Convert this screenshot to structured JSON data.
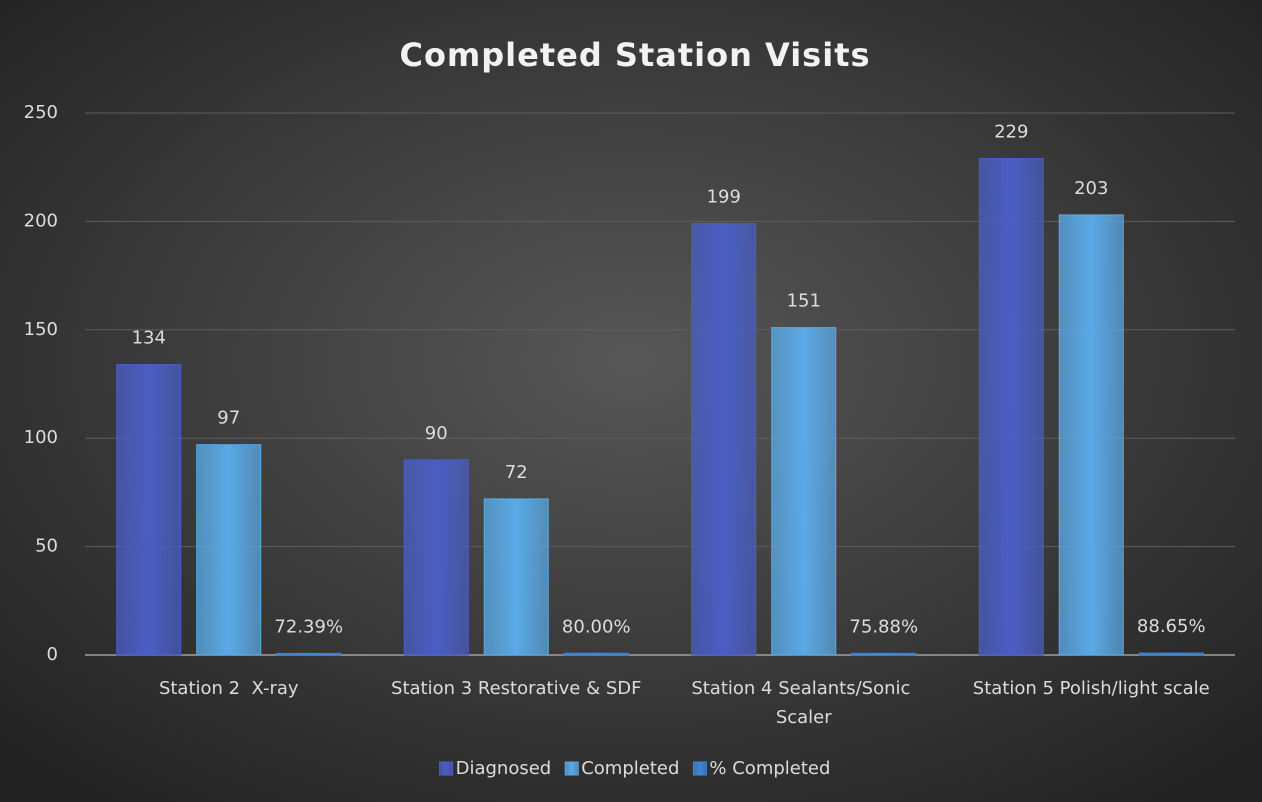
{
  "chart_data": {
    "type": "bar",
    "title": "Completed Station Visits",
    "categories": [
      "Station 2  X-ray",
      "Station 3 Restorative & SDF",
      "Station 4 Sealants/Sonic Scaler",
      "Station 5 Polish/light scale"
    ],
    "series": [
      {
        "name": "Diagnosed",
        "color": "#4a5ec4",
        "values": [
          134,
          90,
          199,
          229
        ]
      },
      {
        "name": "Completed",
        "color": "#5aaae6",
        "values": [
          97,
          72,
          151,
          203
        ]
      },
      {
        "name": "% Completed",
        "color": "#3f86d8",
        "values": [
          0.7239,
          0.8,
          0.7588,
          0.8865
        ],
        "value_labels": [
          "72.39%",
          "80.00%",
          "75.88%",
          "88.65%"
        ]
      }
    ],
    "ylim": [
      0,
      250
    ],
    "yticks": [
      0,
      50,
      100,
      150,
      200,
      250
    ],
    "grid": true,
    "legend": "bottom"
  }
}
